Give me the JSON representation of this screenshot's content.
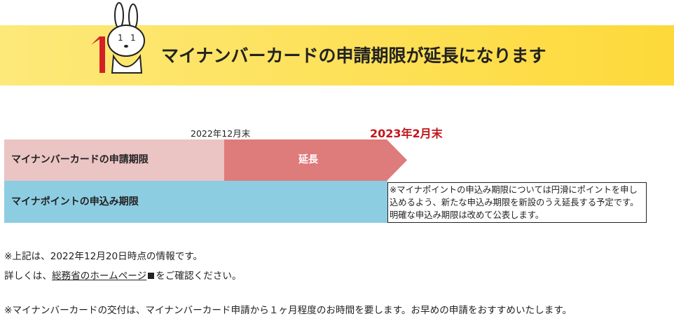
{
  "header": {
    "title": "マイナンバーカードの申請期限が延長になります"
  },
  "timeline": {
    "date_start": "2022年12月末",
    "date_end": "2023年2月末"
  },
  "rows": [
    {
      "label": "マイナンバーカードの申請期限",
      "extension": "延長"
    },
    {
      "label": "マイナポイントの申込み期限",
      "note": "※マイナポイントの申込み期限については円滑にポイントを申し込めるよう、新たな申込み期限を新設のうえ延長する予定です。明確な申込み期限は改めて公表します。"
    }
  ],
  "notes": {
    "line1": "※上記は、2022年12月20日時点の情報です。",
    "line2_prefix": "詳しくは、",
    "line2_link": "総務省のホームページ",
    "line2_suffix": "をご確認ください。",
    "line3": "※マイナンバーカードの交付は、マイナンバーカード申請から１ヶ月程度のお時間を要します。お早めの申請をおすすめいたします。"
  }
}
